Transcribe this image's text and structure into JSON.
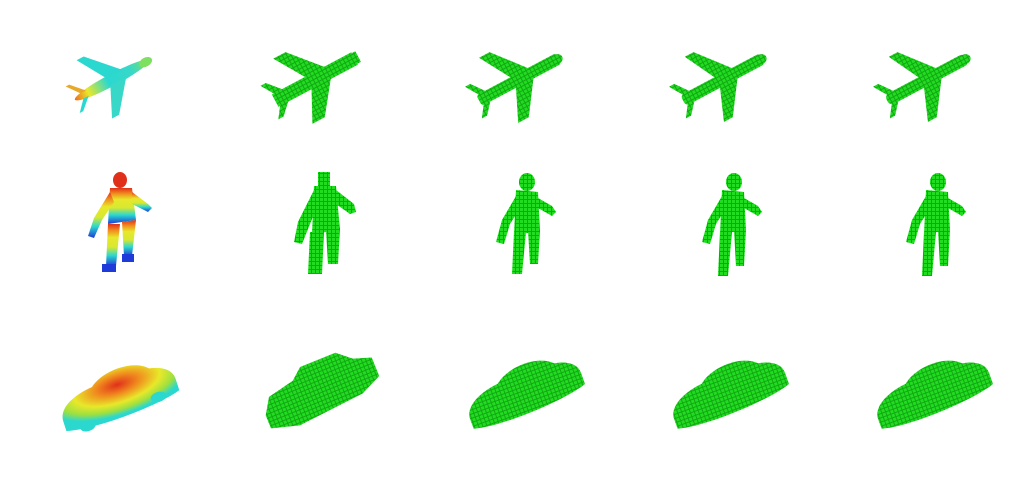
{
  "figure": {
    "rows": [
      {
        "object": "airplane",
        "cells": [
          "ground-truth-heatmap",
          "voxel-reconstruction-1",
          "voxel-reconstruction-2",
          "voxel-reconstruction-3",
          "voxel-reconstruction-4"
        ]
      },
      {
        "object": "human",
        "cells": [
          "ground-truth-heatmap",
          "voxel-reconstruction-1",
          "voxel-reconstruction-2",
          "voxel-reconstruction-3",
          "voxel-reconstruction-4"
        ]
      },
      {
        "object": "car",
        "cells": [
          "ground-truth-heatmap",
          "voxel-reconstruction-1",
          "voxel-reconstruction-2",
          "voxel-reconstruction-3",
          "voxel-reconstruction-4"
        ]
      }
    ],
    "colors": {
      "voxel_green": "#1ed21e",
      "voxel_dark": "#12a812",
      "heat_red": "#e0301a",
      "heat_orange": "#f08a1e",
      "heat_yellow": "#e8e82a",
      "heat_cyan": "#2ad8d0",
      "heat_blue": "#1e3ad8"
    }
  }
}
